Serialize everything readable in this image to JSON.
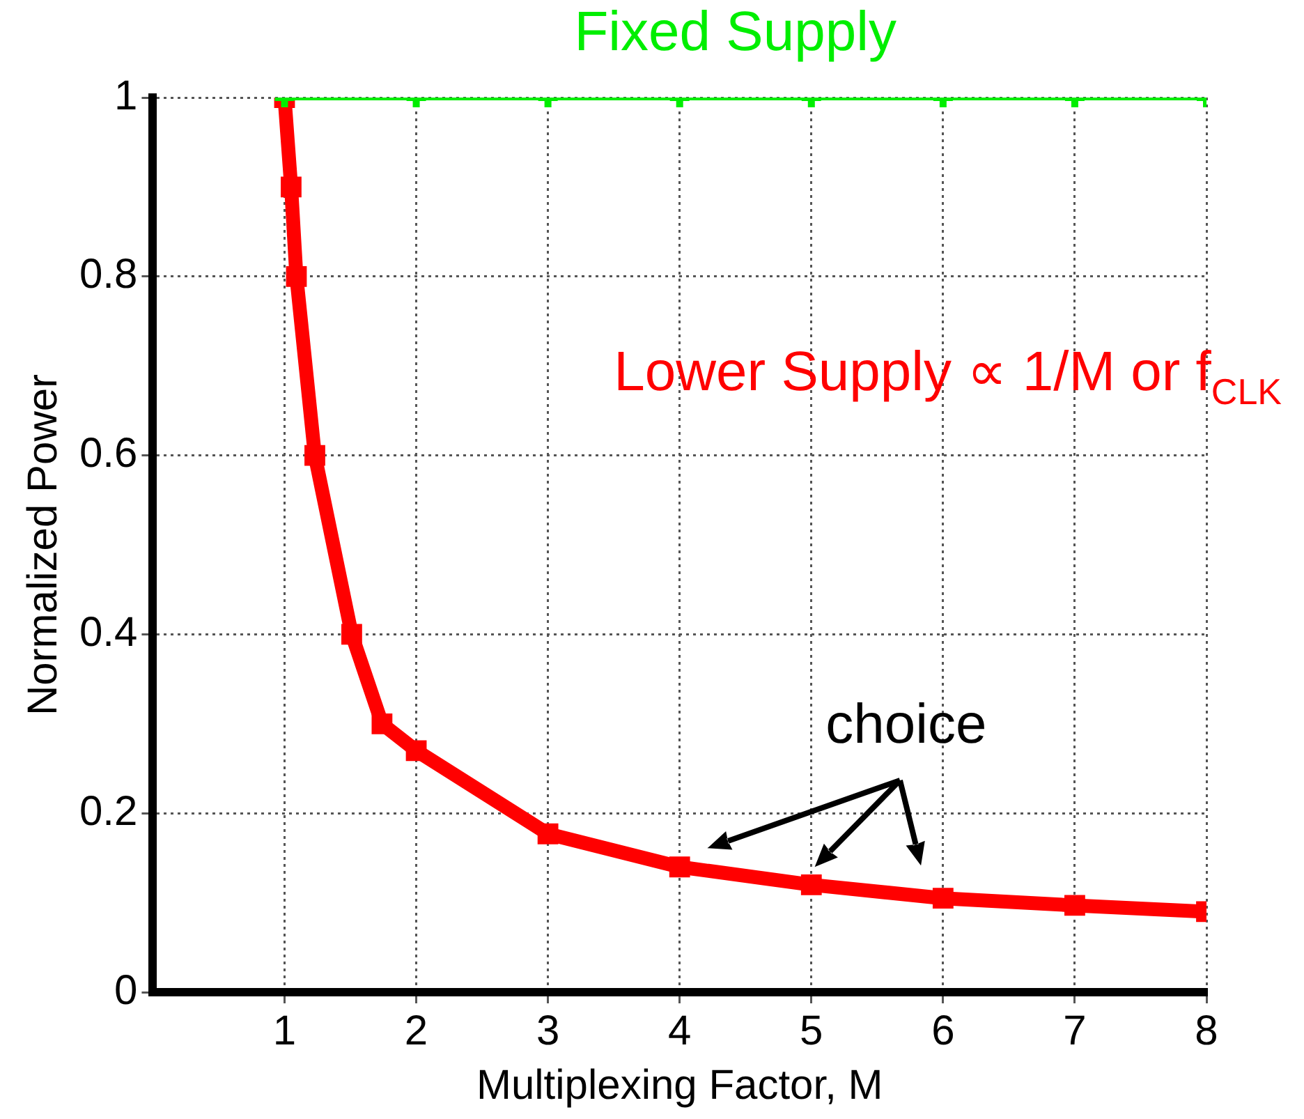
{
  "chart_data": {
    "type": "line",
    "xlabel": "Multiplexing Factor, M",
    "ylabel": "Normalized Power",
    "xlim": [
      0,
      8
    ],
    "xticks": [
      1,
      2,
      3,
      4,
      5,
      6,
      7,
      8
    ],
    "ylim": [
      0,
      1
    ],
    "yticks": [
      0,
      0.2,
      0.4,
      0.6,
      0.8,
      1
    ],
    "grid": true,
    "legend": false,
    "line_style": "solid",
    "series": [
      {
        "name": "Fixed Supply",
        "color": "#00ee00",
        "marker": "cross",
        "x": [
          1,
          2,
          3,
          4,
          5,
          6,
          7,
          8
        ],
        "values": [
          1,
          1,
          1,
          1,
          1,
          1,
          1,
          1
        ]
      },
      {
        "name": "Lower Supply ∝ 1/M or f$_{CLK}$",
        "color": "#ff0000",
        "marker": "square",
        "x": [
          1,
          1.05,
          1.09,
          1.23,
          1.51,
          1.74,
          2,
          3,
          4,
          5,
          6,
          7,
          8
        ],
        "values": [
          1,
          0.9,
          0.8,
          0.6,
          0.4,
          0.3,
          0.27,
          0.177,
          0.14,
          0.12,
          0.105,
          0.097,
          0.09
        ]
      }
    ],
    "annotations": [
      {
        "text": "choice",
        "x": 5,
        "y": 0.12
      }
    ]
  }
}
